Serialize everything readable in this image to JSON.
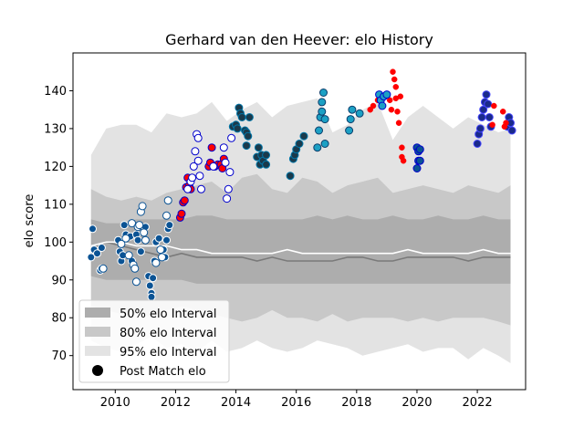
{
  "chart_data": {
    "type": "scatter",
    "title": "Gerhard van den Heever: elo History",
    "xlabel": "",
    "ylabel": "elo score",
    "xlim": [
      2008.6,
      2023.6
    ],
    "ylim": [
      61,
      150
    ],
    "xticks": [
      2010,
      2012,
      2014,
      2016,
      2018,
      2020,
      2022
    ],
    "yticks": [
      70,
      80,
      90,
      100,
      110,
      120,
      130,
      140
    ],
    "legend_position": "lower-left",
    "legend": [
      {
        "label": "50% elo Interval",
        "color": "#adadad"
      },
      {
        "label": "80% elo Interval",
        "color": "#c8c8c8"
      },
      {
        "label": "95% elo Interval",
        "color": "#e3e3e3"
      },
      {
        "label": "Post Match elo",
        "color": "#000000"
      }
    ],
    "bands": {
      "x": [
        2009.2,
        2009.7,
        2010.2,
        2010.7,
        2011.2,
        2011.7,
        2012.2,
        2012.7,
        2013.2,
        2013.7,
        2014.2,
        2014.7,
        2015.2,
        2015.7,
        2016.2,
        2016.7,
        2017.2,
        2017.7,
        2018.2,
        2018.7,
        2019.2,
        2019.7,
        2020.2,
        2020.7,
        2021.2,
        2021.7,
        2022.2,
        2022.7,
        2023.1
      ],
      "b95_upper": [
        123,
        130,
        131,
        131,
        129,
        134,
        133,
        134,
        137,
        132,
        135,
        137,
        133,
        136,
        137,
        138,
        129,
        131,
        135,
        137,
        127,
        133,
        136,
        133,
        130,
        133,
        131,
        129,
        130
      ],
      "b95_lower": [
        74,
        72,
        71,
        73,
        75,
        72,
        73,
        71,
        74,
        71,
        72,
        74,
        72,
        71,
        72,
        74,
        73,
        72,
        70,
        71,
        72,
        73,
        71,
        72,
        72,
        69,
        72,
        70,
        68
      ],
      "b80_upper": [
        114,
        112,
        111,
        112,
        111,
        113,
        114,
        115,
        116,
        113,
        117,
        118,
        114,
        113,
        117,
        116,
        113,
        115,
        116,
        117,
        113,
        114,
        115,
        114,
        113,
        115,
        114,
        113,
        115
      ],
      "b80_lower": [
        83,
        82,
        81,
        82,
        80,
        82,
        83,
        82,
        81,
        80,
        79,
        80,
        82,
        80,
        80,
        79,
        81,
        79,
        80,
        80,
        80,
        79,
        80,
        79,
        80,
        80,
        80,
        79,
        78
      ],
      "b50_upper": [
        106,
        105,
        105,
        106,
        106,
        106,
        106,
        107,
        107,
        106,
        106,
        106,
        106,
        106,
        106,
        107,
        106,
        107,
        106,
        106,
        107,
        106,
        106,
        107,
        106,
        106,
        107,
        106,
        106
      ],
      "b50_lower": [
        91,
        90,
        90,
        90,
        90,
        90,
        90,
        89,
        89,
        89,
        89,
        89,
        89,
        89,
        89,
        89,
        89,
        89,
        89,
        89,
        89,
        89,
        89,
        89,
        89,
        89,
        89,
        89,
        89
      ],
      "median": [
        98,
        100,
        99,
        98,
        97,
        96,
        97,
        96,
        96,
        96,
        96,
        95,
        96,
        95,
        95,
        95,
        95,
        96,
        96,
        95,
        95,
        96,
        96,
        96,
        96,
        95,
        96,
        96,
        96
      ],
      "mean": [
        99,
        100,
        100,
        99,
        99,
        99,
        98,
        98,
        97,
        97,
        97,
        97,
        97,
        98,
        97,
        97,
        97,
        97,
        97,
        97,
        97,
        98,
        97,
        97,
        97,
        97,
        98,
        97,
        97
      ]
    },
    "series": [
      {
        "fill": "#0b5394",
        "stroke": "#ffffff",
        "points": [
          [
            2009.2,
            96
          ],
          [
            2009.25,
            103.5
          ],
          [
            2009.3,
            98
          ],
          [
            2009.4,
            97
          ],
          [
            2009.5,
            92.5
          ],
          [
            2009.55,
            93
          ],
          [
            2009.55,
            98.5
          ],
          [
            2010.1,
            100.5
          ],
          [
            2010.15,
            97.5
          ],
          [
            2010.2,
            95
          ],
          [
            2010.25,
            96.5
          ],
          [
            2010.3,
            104.5
          ],
          [
            2010.35,
            102
          ],
          [
            2010.5,
            101.5
          ],
          [
            2010.55,
            95
          ],
          [
            2010.7,
            102
          ],
          [
            2010.75,
            100.5
          ],
          [
            2010.85,
            97.5
          ],
          [
            2011.0,
            104
          ],
          [
            2011.1,
            91
          ],
          [
            2011.15,
            88.5
          ],
          [
            2011.2,
            86.5
          ],
          [
            2011.2,
            85.5
          ],
          [
            2011.25,
            90.5
          ],
          [
            2011.3,
            95
          ],
          [
            2011.35,
            100
          ],
          [
            2011.45,
            101
          ],
          [
            2011.6,
            98
          ],
          [
            2011.65,
            96
          ],
          [
            2011.7,
            100.5
          ],
          [
            2011.75,
            103.5
          ],
          [
            2011.8,
            104.5
          ]
        ]
      },
      {
        "fill": "#ffffff",
        "stroke": "#0b5394",
        "points": [
          [
            2009.6,
            93
          ],
          [
            2010.2,
            99.5
          ],
          [
            2010.35,
            101
          ],
          [
            2010.45,
            96.5
          ],
          [
            2010.55,
            105
          ],
          [
            2010.6,
            94
          ],
          [
            2010.65,
            93
          ],
          [
            2010.7,
            89.5
          ],
          [
            2010.75,
            104
          ],
          [
            2010.8,
            104.5
          ],
          [
            2010.85,
            108
          ],
          [
            2010.9,
            109.5
          ],
          [
            2010.95,
            102.5
          ],
          [
            2011.0,
            100.5
          ],
          [
            2011.35,
            94.5
          ],
          [
            2011.5,
            98
          ],
          [
            2011.55,
            96
          ],
          [
            2011.7,
            107
          ],
          [
            2011.75,
            111
          ]
        ]
      },
      {
        "fill": "#ff0000",
        "stroke": "#0000cc",
        "points": [
          [
            2012.15,
            106.5
          ],
          [
            2012.2,
            107.5
          ],
          [
            2012.25,
            110.5
          ],
          [
            2012.3,
            111
          ],
          [
            2012.35,
            114.5
          ],
          [
            2012.4,
            117
          ],
          [
            2012.45,
            115
          ],
          [
            2012.5,
            114
          ],
          [
            2013.1,
            120
          ],
          [
            2013.15,
            121
          ],
          [
            2013.2,
            125
          ],
          [
            2013.3,
            120
          ],
          [
            2013.4,
            120.5
          ],
          [
            2013.5,
            120.5
          ],
          [
            2013.55,
            119.5
          ],
          [
            2013.6,
            122
          ]
        ]
      },
      {
        "fill": "#ffffff",
        "stroke": "#0000cc",
        "points": [
          [
            2012.4,
            114
          ],
          [
            2012.5,
            116
          ],
          [
            2012.55,
            117
          ],
          [
            2012.6,
            120
          ],
          [
            2012.65,
            124
          ],
          [
            2012.7,
            128.5
          ],
          [
            2012.75,
            127.5
          ],
          [
            2012.75,
            121.5
          ],
          [
            2012.8,
            117.5
          ],
          [
            2012.85,
            114
          ],
          [
            2013.25,
            120
          ],
          [
            2013.6,
            125
          ],
          [
            2013.65,
            121
          ],
          [
            2013.7,
            111.5
          ],
          [
            2013.75,
            114
          ],
          [
            2013.8,
            118.5
          ],
          [
            2013.85,
            127.5
          ]
        ]
      },
      {
        "fill": "#1b3a4b",
        "stroke": "#0077aa",
        "points": [
          [
            2013.9,
            130.5
          ],
          [
            2014.0,
            131
          ],
          [
            2014.05,
            130
          ],
          [
            2014.1,
            135.5
          ],
          [
            2014.15,
            134
          ],
          [
            2014.2,
            133
          ],
          [
            2014.3,
            129.5
          ],
          [
            2014.35,
            129
          ],
          [
            2014.35,
            125.5
          ],
          [
            2014.4,
            128
          ],
          [
            2014.45,
            133
          ],
          [
            2014.7,
            122.5
          ],
          [
            2014.75,
            125
          ],
          [
            2014.8,
            120.5
          ],
          [
            2014.85,
            123
          ],
          [
            2014.9,
            121.5
          ],
          [
            2015.0,
            123
          ],
          [
            2015.0,
            120.5
          ],
          [
            2015.8,
            117.5
          ],
          [
            2015.9,
            122
          ],
          [
            2015.95,
            123
          ],
          [
            2016.0,
            124.5
          ],
          [
            2016.1,
            126
          ],
          [
            2016.25,
            128
          ]
        ]
      },
      {
        "fill": "#1ca0c4",
        "stroke": "#0b3d6b",
        "points": [
          [
            2016.7,
            125
          ],
          [
            2016.75,
            129.5
          ],
          [
            2016.8,
            133
          ],
          [
            2016.85,
            134.5
          ],
          [
            2016.85,
            137
          ],
          [
            2016.9,
            139.5
          ],
          [
            2016.95,
            132.5
          ],
          [
            2016.95,
            126
          ],
          [
            2017.75,
            129.5
          ],
          [
            2017.8,
            132.5
          ],
          [
            2017.85,
            135
          ],
          [
            2018.1,
            134
          ]
        ]
      },
      {
        "fill": "#ff0000",
        "stroke": "#ff0000",
        "points": [
          [
            2018.45,
            135
          ],
          [
            2018.55,
            136
          ],
          [
            2018.7,
            137.5
          ],
          [
            2019.1,
            137.5
          ],
          [
            2019.15,
            135
          ],
          [
            2019.2,
            145
          ],
          [
            2019.25,
            143
          ],
          [
            2019.3,
            141
          ],
          [
            2019.3,
            138
          ],
          [
            2019.35,
            134.5
          ],
          [
            2019.4,
            131.5
          ],
          [
            2019.45,
            138.5
          ],
          [
            2019.5,
            125
          ],
          [
            2019.5,
            122.5
          ],
          [
            2019.55,
            121.5
          ]
        ]
      },
      {
        "fill": "#1ca0c4",
        "stroke": "#0000cc",
        "points": [
          [
            2018.75,
            139
          ],
          [
            2018.8,
            137.5
          ],
          [
            2018.85,
            136
          ],
          [
            2018.9,
            138.5
          ],
          [
            2019.0,
            139
          ]
        ]
      },
      {
        "fill": "#0b5394",
        "stroke": "#0000cc",
        "points": [
          [
            2020.0,
            125
          ],
          [
            2020.05,
            124
          ],
          [
            2020.05,
            121.5
          ],
          [
            2020.0,
            119.5
          ],
          [
            2020.1,
            121.5
          ],
          [
            2020.1,
            124.5
          ]
        ]
      },
      {
        "fill": "#1a2a8a",
        "stroke": "#4444ff",
        "points": [
          [
            2022.0,
            126
          ],
          [
            2022.05,
            128.5
          ],
          [
            2022.1,
            130
          ],
          [
            2022.15,
            133
          ],
          [
            2022.2,
            135
          ],
          [
            2022.25,
            137
          ],
          [
            2022.3,
            139
          ],
          [
            2022.35,
            136.5
          ],
          [
            2022.4,
            133
          ],
          [
            2022.45,
            130.5
          ],
          [
            2023.0,
            130.5
          ],
          [
            2023.05,
            133
          ],
          [
            2023.1,
            131.5
          ],
          [
            2023.15,
            129.5
          ]
        ]
      },
      {
        "fill": "#ff0000",
        "stroke": "#ff0000",
        "points": [
          [
            2022.5,
            131
          ],
          [
            2022.55,
            136
          ],
          [
            2022.85,
            134.5
          ],
          [
            2022.9,
            130.5
          ],
          [
            2022.95,
            131.5
          ]
        ]
      }
    ]
  }
}
